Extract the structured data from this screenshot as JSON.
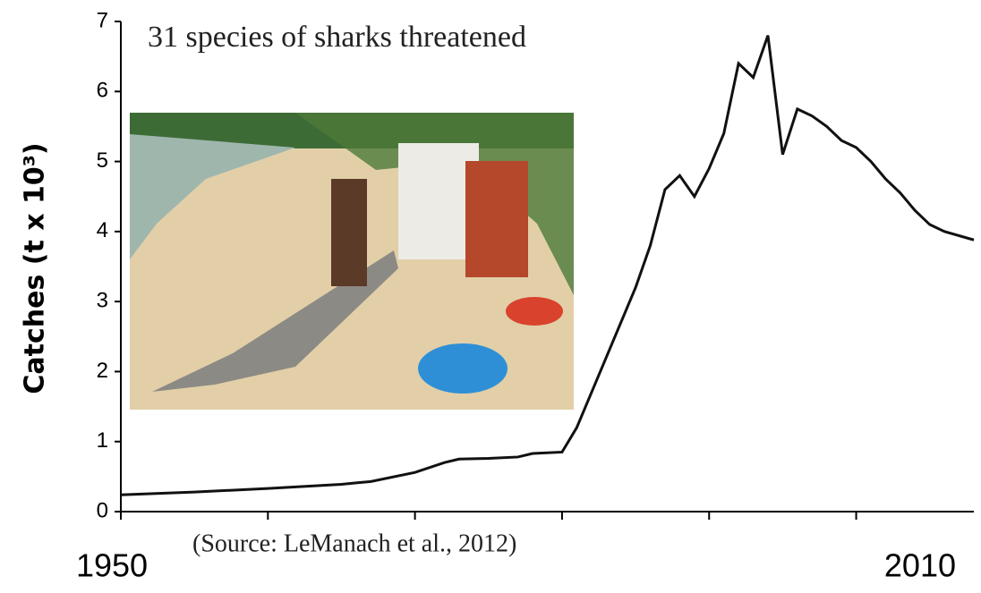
{
  "chart_data": {
    "type": "line",
    "title": "31 species of sharks threatened",
    "source": "(Source: LeManach et al., 2012)",
    "y_label": "Catches (t x 10³)",
    "x": [
      1950,
      1955,
      1960,
      1965,
      1966,
      1967,
      1970,
      1972,
      1973,
      1975,
      1977,
      1978,
      1980,
      1981,
      1983,
      1985,
      1986,
      1987,
      1988,
      1989,
      1990,
      1991,
      1992,
      1993,
      1994,
      1995,
      1996,
      1997,
      1998,
      1999,
      2000,
      2001,
      2002,
      2003,
      2004,
      2005,
      2006,
      2008
    ],
    "series": [
      {
        "name": "Catches",
        "color": "#111111",
        "values": [
          0.24,
          0.28,
          0.33,
          0.39,
          0.41,
          0.43,
          0.56,
          0.7,
          0.75,
          0.76,
          0.78,
          0.83,
          0.85,
          1.2,
          2.2,
          3.2,
          3.8,
          4.6,
          4.8,
          4.5,
          4.9,
          5.4,
          6.4,
          6.2,
          6.8,
          5.1,
          5.75,
          5.65,
          5.5,
          5.3,
          5.2,
          5.0,
          4.75,
          4.55,
          4.3,
          4.1,
          4.0,
          3.88
        ]
      }
    ],
    "xlim": [
      1950,
      2008
    ],
    "tick_marks_x": [
      1950,
      1960,
      1970,
      1980,
      1990,
      2000
    ],
    "xticks": [
      1950,
      2010
    ],
    "ylim": [
      0,
      7
    ],
    "yticks": [
      0,
      1,
      2,
      3,
      4,
      5,
      6,
      7
    ],
    "grid": false
  }
}
